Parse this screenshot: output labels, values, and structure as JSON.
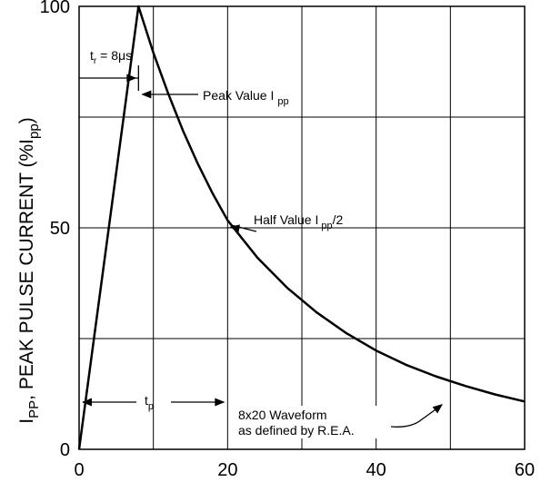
{
  "chart_data": {
    "type": "line",
    "x": [
      0,
      8,
      10,
      12,
      14,
      16,
      18,
      20,
      24,
      28,
      32,
      36,
      40,
      44,
      48,
      52,
      56,
      60
    ],
    "series": [
      {
        "values": [
          0,
          100,
          89.5,
          80.3,
          71.9,
          64.4,
          57.7,
          51.7,
          43.3,
          36.5,
          30.9,
          26.2,
          22.3,
          19.1,
          16.5,
          14.3,
          12.4,
          10.8
        ]
      }
    ],
    "xlim": [
      0,
      60
    ],
    "ylim": [
      0,
      100
    ],
    "x_ticks": [
      "0",
      "20",
      "40",
      "60"
    ],
    "y_ticks": [
      "0",
      "50",
      "100"
    ],
    "grid": true,
    "ylabel_main": "I",
    "ylabel_sub": "PP",
    "ylabel_rest": ", PEAK PULSE CURRENT (%I",
    "ylabel_sub2": "pp",
    "ylabel_close": ")",
    "annotations": {
      "tr": {
        "t": "t",
        "sub": "r",
        "rest": " = 8",
        "mu": "μ",
        "unit": "s"
      },
      "peak": {
        "text": "Peak Value I",
        "sub": "pp"
      },
      "half": {
        "text": "Half Value I",
        "sub": "pp",
        "rest": "/2"
      },
      "tp": {
        "t": "t",
        "sub": "p"
      },
      "waveform_line1": "8x20 Waveform",
      "waveform_line2": "as defined by R.E.A."
    }
  }
}
